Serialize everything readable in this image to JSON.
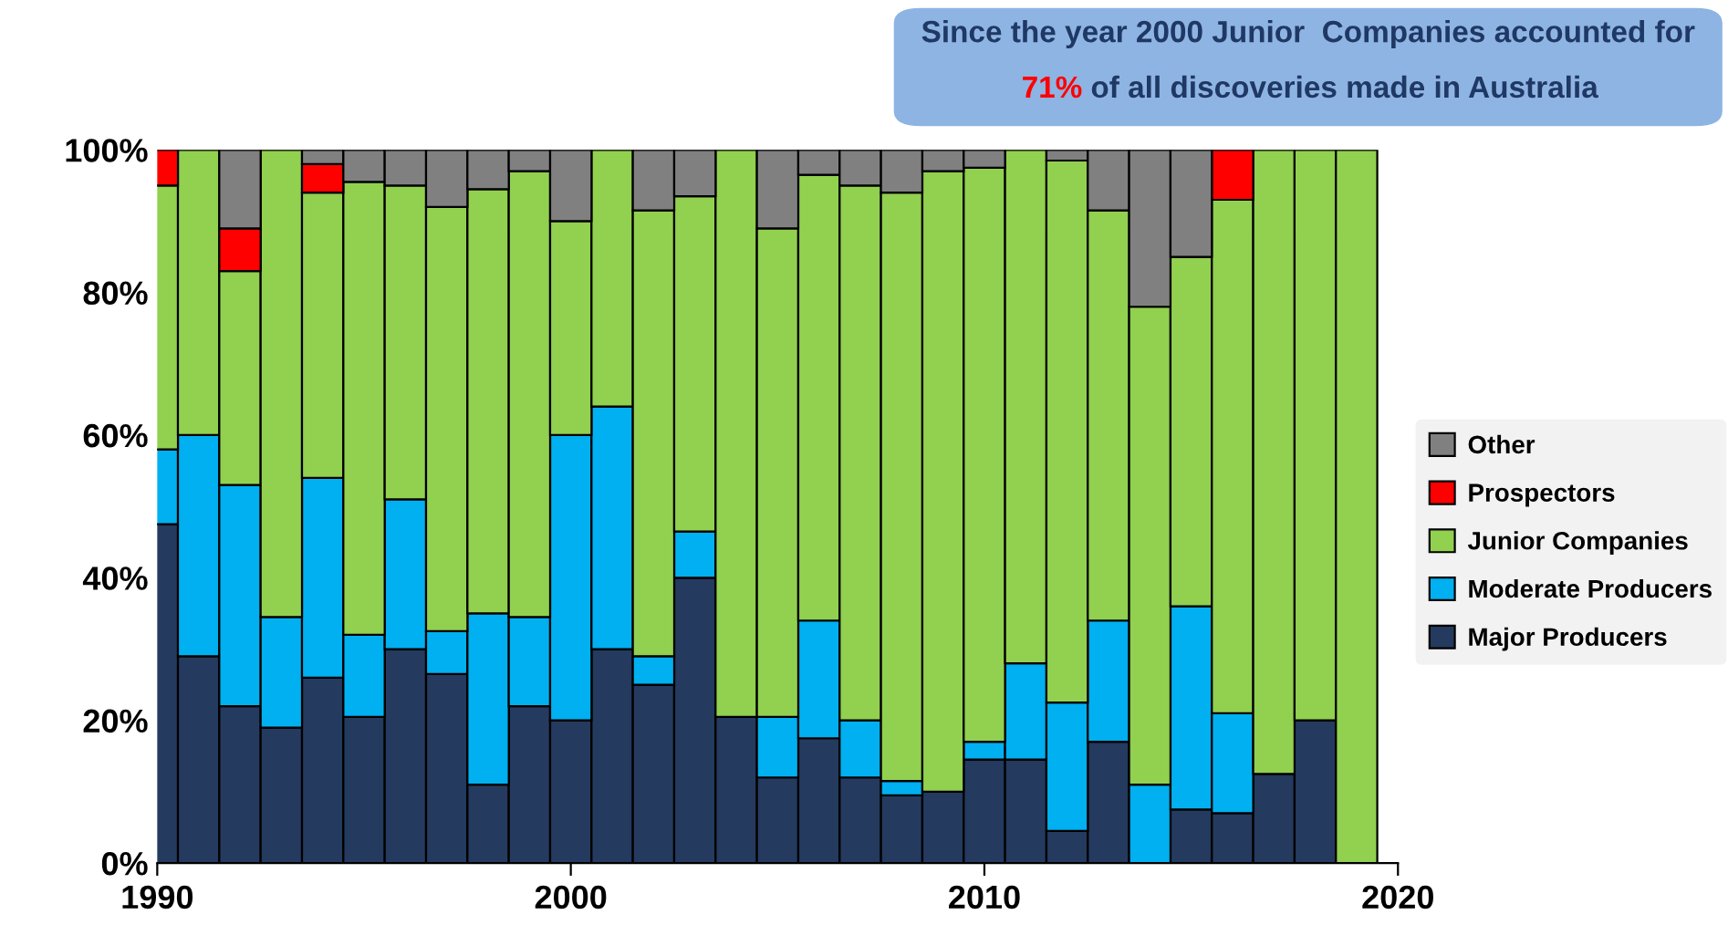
{
  "chart_data": {
    "type": "bar",
    "stacked": true,
    "x": [
      1990,
      1991,
      1992,
      1993,
      1994,
      1995,
      1996,
      1997,
      1998,
      1999,
      2000,
      2001,
      2002,
      2003,
      2004,
      2005,
      2006,
      2007,
      2008,
      2009,
      2010,
      2011,
      2012,
      2013,
      2014,
      2015,
      2016,
      2017,
      2018,
      2019
    ],
    "series": [
      {
        "name": "Major Producers",
        "color": "#243a5e",
        "values": [
          47.5,
          29,
          22,
          19,
          26,
          20.5,
          30,
          26.5,
          11,
          22,
          20,
          30,
          25,
          40,
          20.5,
          12,
          17.5,
          12,
          9.5,
          10,
          14.5,
          14.5,
          4.5,
          17,
          0,
          7.5,
          7,
          12.5,
          20,
          0
        ]
      },
      {
        "name": "Moderate Producers",
        "color": "#00b0f0",
        "values": [
          10.5,
          31,
          31,
          15.5,
          28,
          11.5,
          21,
          6,
          24,
          12.5,
          40,
          34,
          4,
          6.5,
          0,
          8.5,
          16.5,
          8,
          2,
          0,
          2.5,
          13.5,
          18,
          17,
          11,
          28.5,
          14,
          0,
          0,
          0
        ]
      },
      {
        "name": "Junior Companies",
        "color": "#92d050",
        "values": [
          37,
          40,
          30,
          65.5,
          40,
          63.5,
          44,
          59.5,
          59.5,
          62.5,
          30,
          36,
          62.5,
          47,
          79.5,
          68.5,
          62.5,
          75,
          82.5,
          87,
          80.5,
          72,
          76,
          57.5,
          67,
          49,
          72,
          87.5,
          80,
          100
        ]
      },
      {
        "name": "Prospectors",
        "color": "#ff0000",
        "values": [
          5,
          0,
          6,
          0,
          4,
          0,
          0,
          0,
          0,
          0,
          0,
          0,
          0,
          0,
          0,
          0,
          0,
          0,
          0,
          0,
          0,
          0,
          0,
          0,
          0,
          0,
          7,
          0,
          0,
          0
        ]
      },
      {
        "name": "Other",
        "color": "#808080",
        "values": [
          0,
          0,
          11,
          0,
          2,
          4.5,
          5,
          8,
          5.5,
          3,
          10,
          0,
          8.5,
          6.5,
          0,
          11,
          3.5,
          5,
          6,
          3,
          2.5,
          0,
          1.5,
          8.5,
          22,
          15,
          0,
          0,
          0,
          0
        ]
      }
    ],
    "xlim": [
      1990,
      2020
    ],
    "xticks": [
      1990,
      2000,
      2010,
      2020
    ],
    "ylim": [
      0,
      100
    ],
    "yticks": [
      {
        "value": 0,
        "label": "0%"
      },
      {
        "value": 20,
        "label": "20%"
      },
      {
        "value": 40,
        "label": "40%"
      },
      {
        "value": 60,
        "label": "60%"
      },
      {
        "value": 80,
        "label": "80%"
      },
      {
        "value": 100,
        "label": "100%"
      }
    ],
    "grid": false,
    "legend": "right",
    "annotations": [
      "Since the year 2000 Junior  Companies accounted for",
      "71% of all discoveries made in Australia"
    ]
  }
}
